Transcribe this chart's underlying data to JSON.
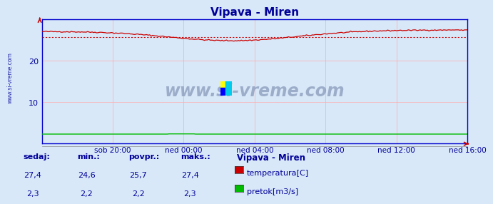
{
  "title": "Vipava - Miren",
  "title_color": "#000099",
  "bg_color": "#d8e8f8",
  "plot_bg_color": "#d8e8f8",
  "grid_color": "#ffaaaa",
  "axis_color": "#0000cc",
  "x_labels": [
    "sob 20:00",
    "ned 00:00",
    "ned 04:00",
    "ned 08:00",
    "ned 12:00",
    "ned 16:00"
  ],
  "y_ticks": [
    10,
    20
  ],
  "ylim": [
    0,
    30
  ],
  "temp_color": "#cc0000",
  "flow_color": "#00bb00",
  "avg_line_color": "#cc0000",
  "avg_temp": 25.7,
  "min_temp": 24.6,
  "max_temp": 27.4,
  "cur_temp": 27.4,
  "min_flow": 2.2,
  "max_flow": 2.3,
  "avg_flow": 2.2,
  "cur_flow": 2.3,
  "watermark": "www.si-vreme.com",
  "watermark_color": "#8899bb",
  "side_label": "www.si-vreme.com",
  "legend_title": "Vipava - Miren",
  "label_color": "#000099",
  "temp_label": "temperatura[C]",
  "flow_label": "pretok[m3/s]",
  "sedaj_label": "sedaj:",
  "min_label": "min.:",
  "povpr_label": "povpr.:",
  "maks_label": "maks.:",
  "n_points": 289
}
